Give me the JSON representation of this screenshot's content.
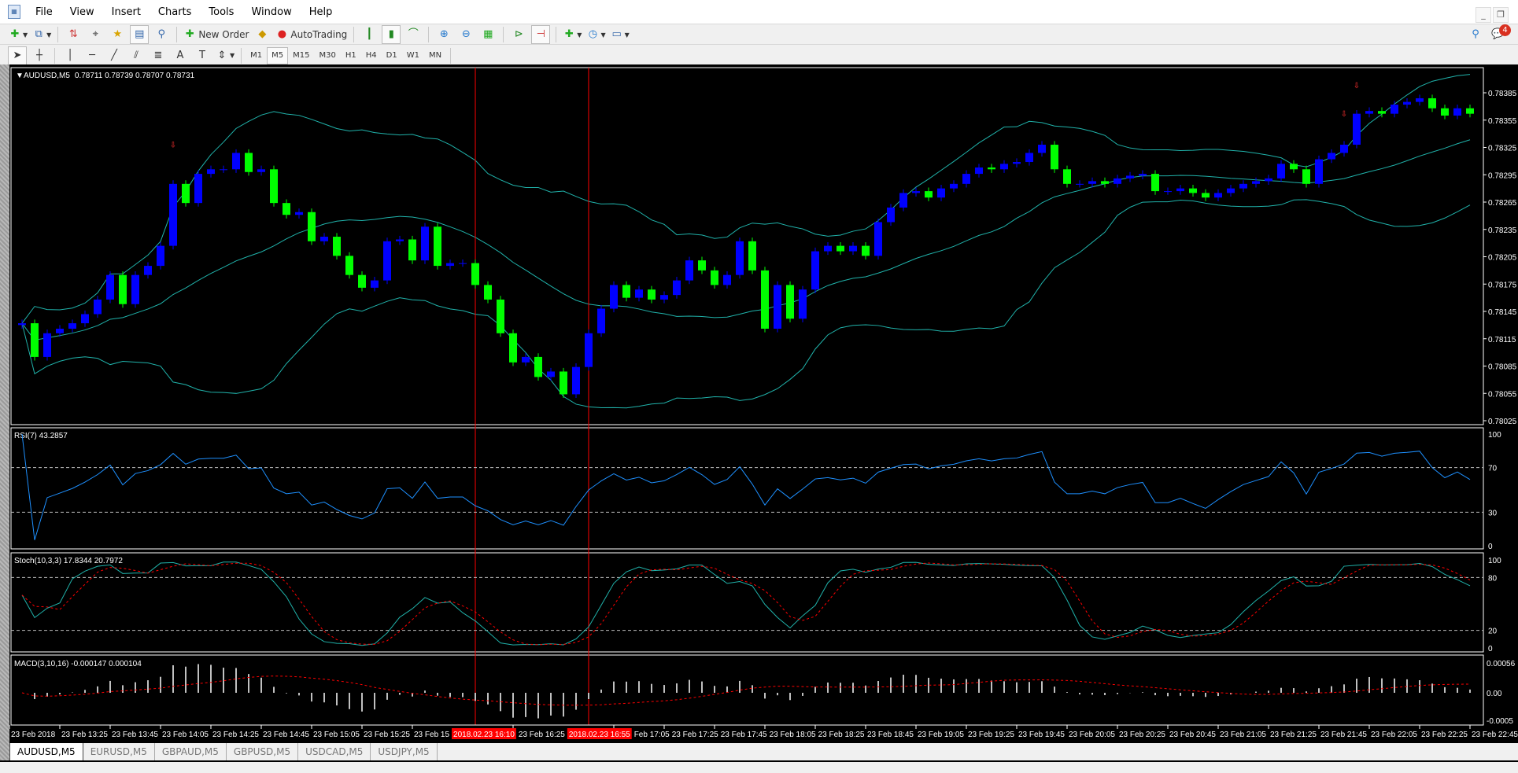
{
  "menu": [
    "File",
    "View",
    "Insert",
    "Charts",
    "Tools",
    "Window",
    "Help"
  ],
  "toolbar": {
    "new_order": "New Order",
    "autotrading": "AutoTrading"
  },
  "timeframes": [
    "M1",
    "M5",
    "M15",
    "M30",
    "H1",
    "H4",
    "D1",
    "W1",
    "MN"
  ],
  "active_timeframe": "M5",
  "notifications_count": "4",
  "chart_header": {
    "symbol": "AUDUSD,M5",
    "ohlc": "0.78711 0.78739 0.78707 0.78731"
  },
  "tabs": [
    "AUDUSD,M5",
    "EURUSD,M5",
    "GBPAUD,M5",
    "GBPUSD,M5",
    "USDCAD,M5",
    "USDJPY,M5"
  ],
  "active_tab": "AUDUSD,M5",
  "colors": {
    "bull": "#0000ff",
    "bear": "#00ff00",
    "bands": "#20b2aa",
    "rsi": "#1e90ff",
    "stoch_main": "#20b2aa",
    "signal": "#ff0000",
    "macd_hist": "#c0c0c0",
    "vline": "#ff0000"
  },
  "chart_data": {
    "type": "candlestick",
    "timeframe_minutes": 5,
    "first_open": 0.7813,
    "closes": [
      0.78132,
      0.78095,
      0.78121,
      0.78126,
      0.78132,
      0.78142,
      0.78158,
      0.78185,
      0.78153,
      0.78185,
      0.78195,
      0.78217,
      0.78285,
      0.78264,
      0.78296,
      0.78301,
      0.78301,
      0.78319,
      0.78298,
      0.78301,
      0.78264,
      0.78251,
      0.78254,
      0.78222,
      0.78227,
      0.78206,
      0.78185,
      0.78171,
      0.78179,
      0.78222,
      0.78224,
      0.78201,
      0.78238,
      0.78195,
      0.78198,
      0.78198,
      0.78174,
      0.78158,
      0.78121,
      0.78089,
      0.78095,
      0.78073,
      0.78079,
      0.78054,
      0.78084,
      0.78121,
      0.78148,
      0.78174,
      0.7816,
      0.78169,
      0.78158,
      0.78163,
      0.78179,
      0.78201,
      0.7819,
      0.78174,
      0.78185,
      0.78222,
      0.7819,
      0.78126,
      0.78174,
      0.78137,
      0.78169,
      0.78211,
      0.78217,
      0.78211,
      0.78217,
      0.78206,
      0.78243,
      0.78259,
      0.78275,
      0.78277,
      0.7827,
      0.7828,
      0.78285,
      0.78296,
      0.78303,
      0.78301,
      0.78307,
      0.78309,
      0.78319,
      0.78328,
      0.78301,
      0.78285,
      0.78285,
      0.78288,
      0.78285,
      0.78291,
      0.78294,
      0.78296,
      0.78277,
      0.78277,
      0.7828,
      0.78275,
      0.7827,
      0.78275,
      0.7828,
      0.78285,
      0.78288,
      0.78291,
      0.78307,
      0.78301,
      0.78285,
      0.78312,
      0.78319,
      0.78328,
      0.78362,
      0.78365,
      0.78362,
      0.78372,
      0.78375,
      0.78379,
      0.78368,
      0.7836,
      0.78368,
      0.78362
    ],
    "price_ticks": [
      "0.78385",
      "0.78355",
      "0.78325",
      "0.78295",
      "0.78265",
      "0.78235",
      "0.78205",
      "0.78175",
      "0.78145",
      "0.78115",
      "0.78085",
      "0.78055",
      "0.78025"
    ],
    "time_labels": [
      {
        "bar": -1,
        "label": "23 Feb 2018"
      },
      {
        "bar": 3,
        "label": "23 Feb 13:25"
      },
      {
        "bar": 7,
        "label": "23 Feb 13:45"
      },
      {
        "bar": 11,
        "label": "23 Feb 14:05"
      },
      {
        "bar": 15,
        "label": "23 Feb 14:25"
      },
      {
        "bar": 19,
        "label": "23 Feb 14:45"
      },
      {
        "bar": 23,
        "label": "23 Feb 15:05"
      },
      {
        "bar": 27,
        "label": "23 Feb 15:25"
      },
      {
        "bar": 31,
        "label": "23 Feb 15"
      },
      {
        "bar": 39,
        "label": "23 Feb 16:25"
      },
      {
        "bar": 47,
        "label": "Feb 17:05"
      },
      {
        "bar": 51,
        "label": "23 Feb 17:25"
      },
      {
        "bar": 55,
        "label": "23 Feb 17:45"
      },
      {
        "bar": 59,
        "label": "23 Feb 18:05"
      },
      {
        "bar": 63,
        "label": "23 Feb 18:25"
      },
      {
        "bar": 67,
        "label": "23 Feb 18:45"
      },
      {
        "bar": 71,
        "label": "23 Feb 19:05"
      },
      {
        "bar": 75,
        "label": "23 Feb 19:25"
      },
      {
        "bar": 79,
        "label": "23 Feb 19:45"
      },
      {
        "bar": 83,
        "label": "23 Feb 20:05"
      },
      {
        "bar": 87,
        "label": "23 Feb 20:25"
      },
      {
        "bar": 91,
        "label": "23 Feb 20:45"
      },
      {
        "bar": 95,
        "label": "23 Feb 21:05"
      },
      {
        "bar": 99,
        "label": "23 Feb 21:25"
      },
      {
        "bar": 103,
        "label": "23 Feb 21:45"
      },
      {
        "bar": 107,
        "label": "23 Feb 22:05"
      },
      {
        "bar": 111,
        "label": "23 Feb 22:25"
      },
      {
        "bar": 115,
        "label": "23 Feb 22:45"
      }
    ],
    "vertical_lines": [
      {
        "bar": 36,
        "label": "2018.02.23 16:10"
      },
      {
        "bar": 45,
        "label": "2018.02.23 16:55"
      }
    ],
    "arrow_markers": [
      {
        "bar": 12,
        "price": 0.78325
      },
      {
        "bar": 105,
        "price": 0.78359
      },
      {
        "bar": 106,
        "price": 0.7839
      }
    ],
    "overlay": "Bollinger Bands (20, 2)",
    "indicators": {
      "rsi": {
        "label": "RSI(7) 43.2857",
        "ticks": [
          "100",
          "70",
          "30",
          "0"
        ],
        "levels": [
          70,
          30
        ]
      },
      "stoch": {
        "label": "Stoch(10,3,3) 17.8344 20.7972",
        "ticks": [
          "100",
          "80",
          "20",
          "0"
        ],
        "levels": [
          80,
          20
        ]
      },
      "macd": {
        "label": "MACD(3,10,16) -0.000147 0.000104",
        "ticks": [
          "0.00056",
          "0.00",
          "-0.0005"
        ]
      }
    }
  }
}
